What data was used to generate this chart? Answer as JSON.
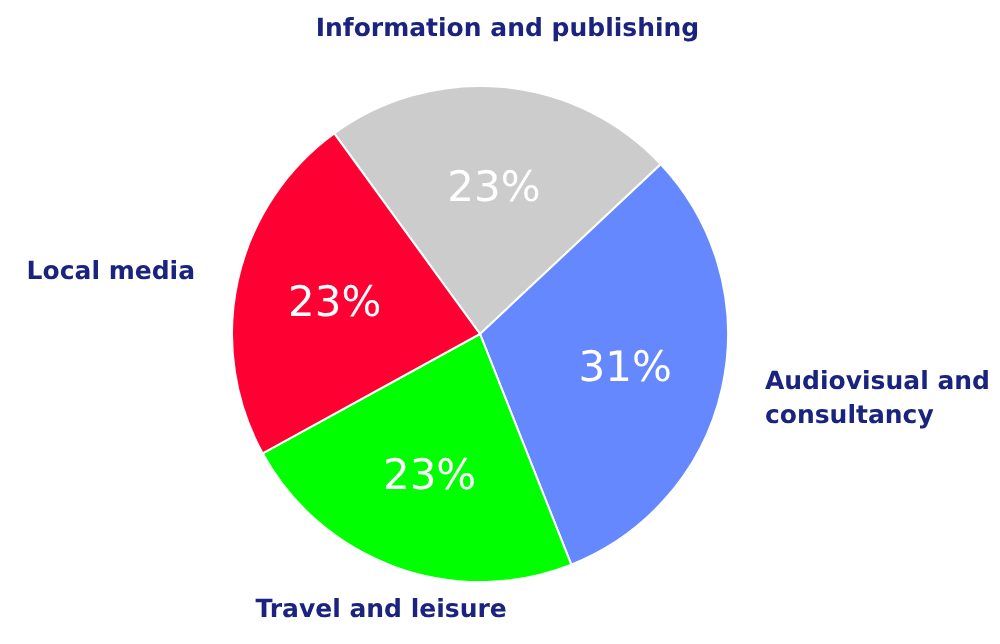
{
  "chart_data": {
    "type": "pie",
    "categories": [
      "Information and publishing",
      "Audiovisual and consultancy",
      "Travel and leisure",
      "Local media"
    ],
    "values": [
      23,
      31,
      23,
      23
    ],
    "colors": [
      "#cccccc",
      "#6688ff",
      "#00ff00",
      "#ff0033"
    ],
    "value_labels": [
      "23%",
      "31%",
      "23%",
      "23%"
    ]
  }
}
